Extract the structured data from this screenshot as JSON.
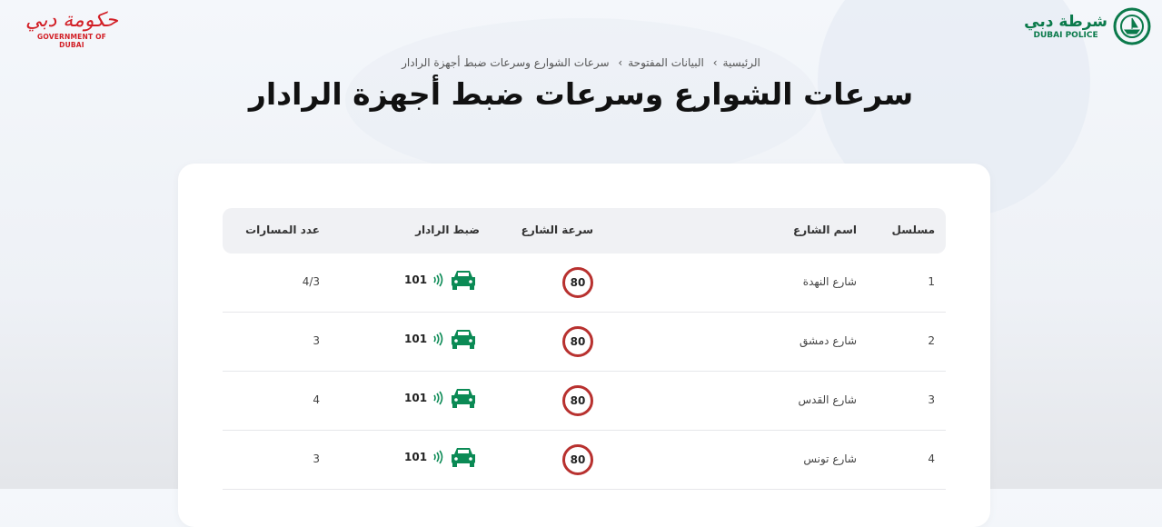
{
  "header": {
    "gov_logo_ar": "حكومة دبي",
    "gov_logo_en": "GOVERNMENT OF DUBAI",
    "police_logo_ar": "شرطة دبي",
    "police_logo_en": "DUBAI POLICE"
  },
  "breadcrumb": [
    "الرئيسية",
    "البيانات المفتوحة",
    "سرعات الشوارع وسرعات ضبط أجهزة الرادار"
  ],
  "title": "سرعات الشوارع وسرعات ضبط أجهزة الرادار",
  "table": {
    "headers": {
      "serial": "مسلسل",
      "street": "اسم الشارع",
      "speed": "سرعة الشارع",
      "radar": "ضبط الرادار",
      "lanes": "عدد المسارات"
    },
    "rows": [
      {
        "serial": "1",
        "street": "شارع النهدة",
        "speed": "80",
        "radar": "101",
        "lanes": "4/3"
      },
      {
        "serial": "2",
        "street": "شارع دمشق",
        "speed": "80",
        "radar": "101",
        "lanes": "3"
      },
      {
        "serial": "3",
        "street": "شارع القدس",
        "speed": "80",
        "radar": "101",
        "lanes": "4"
      },
      {
        "serial": "4",
        "street": "شارع تونس",
        "speed": "80",
        "radar": "101",
        "lanes": "3"
      }
    ]
  },
  "colors": {
    "speed_ring": "#b8312f",
    "radar_icon": "#0b8a55",
    "gov_red": "#d21f26",
    "police_green": "#0b7a4b"
  }
}
